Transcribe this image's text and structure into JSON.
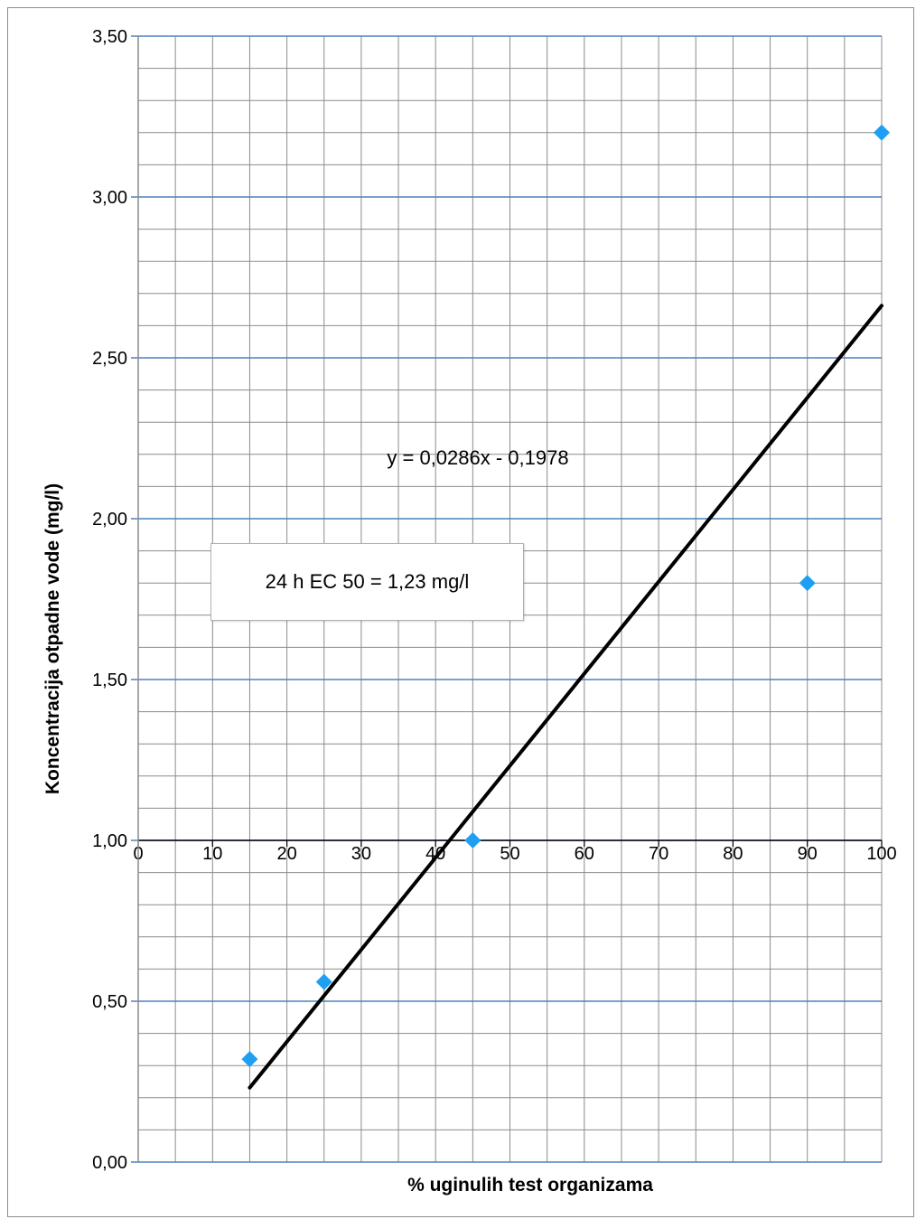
{
  "chart_data": {
    "type": "scatter",
    "xlabel": "% uginulih test organizama",
    "ylabel": "Koncentracija otpadne vode (mg/l)",
    "xlim": [
      0,
      100
    ],
    "ylim": [
      0,
      3.5
    ],
    "x_ticks": [
      "0",
      "10",
      "20",
      "30",
      "40",
      "50",
      "60",
      "70",
      "80",
      "90",
      "100"
    ],
    "y_ticks": [
      "0,00",
      "0,50",
      "1,00",
      "1,50",
      "2,00",
      "2,50",
      "3,00",
      "3,50"
    ],
    "x_axis_crosses_y": 1.0,
    "grid": true,
    "series": [
      {
        "points": [
          {
            "x": 15,
            "y": 0.32
          },
          {
            "x": 25,
            "y": 0.56
          },
          {
            "x": 45,
            "y": 1.0
          },
          {
            "x": 90,
            "y": 1.8
          },
          {
            "x": 100,
            "y": 3.2
          }
        ],
        "marker": "diamond",
        "color": "#1e9ff2"
      }
    ],
    "trendline": {
      "equation": "y = 0,0286x - 0,1978",
      "slope": 0.0286,
      "intercept": -0.1978,
      "x_range": [
        15,
        100
      ],
      "color": "#000000"
    },
    "annotation": "24 h EC 50 = 1,23 mg/l",
    "colors": {
      "major_grid": "#4f81bd",
      "minor_grid": "#8c8c8c",
      "marker": "#1e9ff2"
    }
  }
}
